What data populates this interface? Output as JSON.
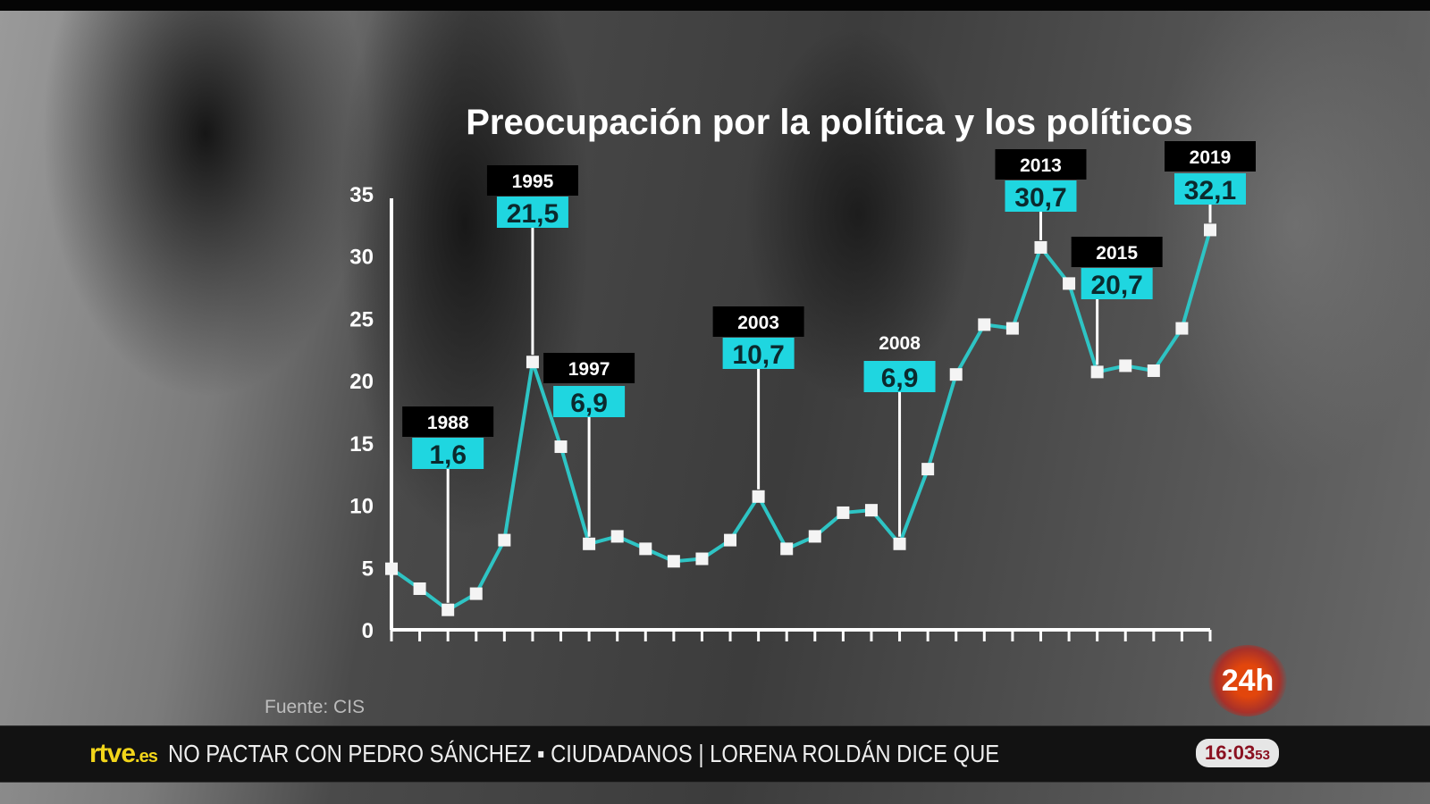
{
  "chart_data": {
    "type": "line",
    "title": "Preocupación por la política y los políticos",
    "xlabel": "",
    "ylabel": "",
    "ylim": [
      0,
      35
    ],
    "yticks": [
      0,
      5,
      10,
      15,
      20,
      25,
      30,
      35
    ],
    "grid": false,
    "values": [
      4.9,
      3.3,
      1.6,
      2.9,
      7.2,
      21.5,
      14.7,
      6.9,
      7.5,
      6.5,
      5.5,
      5.7,
      7.2,
      10.7,
      6.5,
      7.5,
      9.4,
      9.6,
      6.9,
      12.9,
      20.5,
      24.5,
      24.2,
      30.7,
      27.8,
      20.7,
      21.2,
      20.8,
      24.2,
      32.1
    ],
    "annotations": [
      {
        "index": 2,
        "year": "1988",
        "label": "1,6"
      },
      {
        "index": 5,
        "year": "1995",
        "label": "21,5"
      },
      {
        "index": 7,
        "year": "1997",
        "label": "6,9"
      },
      {
        "index": 13,
        "year": "2003",
        "label": "10,7"
      },
      {
        "index": 18,
        "year": "2008",
        "label": "6,9"
      },
      {
        "index": 23,
        "year": "2013",
        "label": "30,7"
      },
      {
        "index": 25,
        "year": "2015",
        "label": "20,7"
      },
      {
        "index": 29,
        "year": "2019",
        "label": "32,1"
      }
    ],
    "source": "Fuente: CIS",
    "colors": {
      "line": "#2ec4c4",
      "value_box": "#1fd6e0",
      "year_box": "#000000"
    }
  },
  "channel_badge": "24h",
  "ticker": {
    "logo": "rtve",
    "logo_suffix": ".es",
    "text": "NO PACTAR CON PEDRO SÁNCHEZ   ▪   CIUDADANOS | LORENA ROLDÁN DICE QUE",
    "clock_hm": "16:03",
    "clock_s": "53"
  }
}
